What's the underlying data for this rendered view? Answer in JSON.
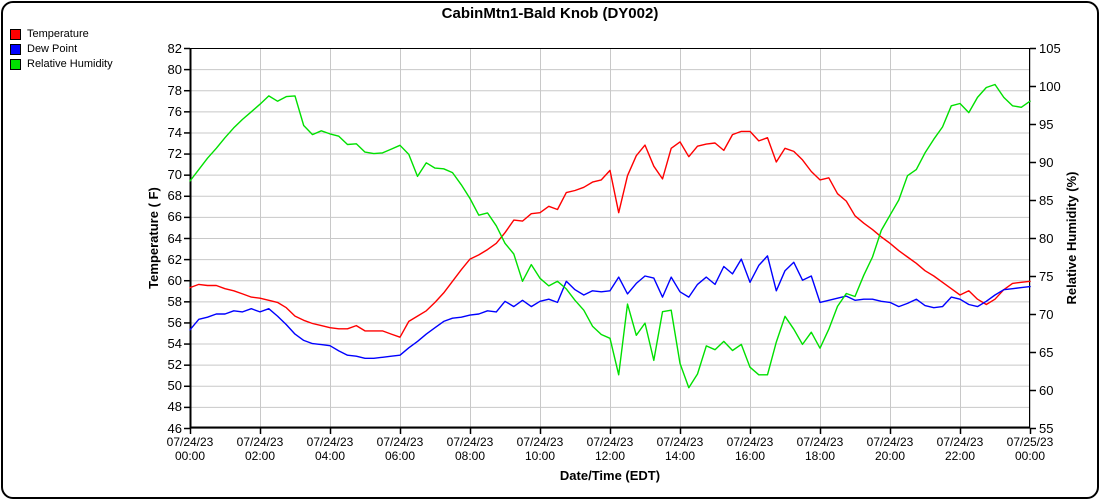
{
  "title": "CabinMtn1-Bald Knob (DY002)",
  "legend": {
    "items": [
      {
        "label": "Temperature",
        "color": "#ff0000"
      },
      {
        "label": "Dew Point",
        "color": "#0000ff"
      },
      {
        "label": "Relative Humidity",
        "color": "#00e000"
      }
    ]
  },
  "chart_data": {
    "type": "line",
    "title": "CabinMtn1-Bald Knob (DY002)",
    "xlabel": "Date/Time (EDT)",
    "ylabel_left": "Temperature ( F)",
    "ylabel_right": "Relative Humidity (%)",
    "grid": true,
    "grid_color": "#c8c8c8",
    "x_start_hours": 0,
    "x_end_hours": 24,
    "sample_interval_minutes": 15,
    "x_ticks": [
      {
        "date": "07/24/23",
        "time": "00:00"
      },
      {
        "date": "07/24/23",
        "time": "02:00"
      },
      {
        "date": "07/24/23",
        "time": "04:00"
      },
      {
        "date": "07/24/23",
        "time": "06:00"
      },
      {
        "date": "07/24/23",
        "time": "08:00"
      },
      {
        "date": "07/24/23",
        "time": "10:00"
      },
      {
        "date": "07/24/23",
        "time": "12:00"
      },
      {
        "date": "07/24/23",
        "time": "14:00"
      },
      {
        "date": "07/24/23",
        "time": "16:00"
      },
      {
        "date": "07/24/23",
        "time": "18:00"
      },
      {
        "date": "07/24/23",
        "time": "20:00"
      },
      {
        "date": "07/24/23",
        "time": "22:00"
      },
      {
        "date": "07/25/23",
        "time": "00:00"
      }
    ],
    "y_left": {
      "label": "Temperature ( F)",
      "min": 46,
      "max": 82,
      "tick_step": 2,
      "ticks": [
        82,
        80,
        78,
        76,
        74,
        72,
        70,
        68,
        66,
        64,
        62,
        60,
        58,
        56,
        54,
        52,
        50,
        48,
        46
      ]
    },
    "y_right": {
      "label": "Relative Humidity (%)",
      "min": 55,
      "max": 105,
      "tick_step": 5,
      "ticks": [
        105,
        100,
        95,
        90,
        85,
        80,
        75,
        70,
        65,
        60,
        55
      ]
    },
    "series": [
      {
        "name": "Temperature",
        "axis": "left",
        "color": "#ff0000",
        "values": [
          59.3,
          59.6,
          59.5,
          59.5,
          59.2,
          59.0,
          58.7,
          58.4,
          58.3,
          58.1,
          57.9,
          57.4,
          56.6,
          56.2,
          55.9,
          55.7,
          55.5,
          55.4,
          55.4,
          55.7,
          55.2,
          55.2,
          55.2,
          54.9,
          54.6,
          56.1,
          56.6,
          57.1,
          57.9,
          58.8,
          59.9,
          61.0,
          62.0,
          62.4,
          62.9,
          63.5,
          64.5,
          65.7,
          65.6,
          66.3,
          66.4,
          67.0,
          66.7,
          68.3,
          68.5,
          68.8,
          69.3,
          69.5,
          70.4,
          66.4,
          69.9,
          71.8,
          72.8,
          70.8,
          69.6,
          72.5,
          73.1,
          71.7,
          72.7,
          72.9,
          73.0,
          72.3,
          73.8,
          74.1,
          74.1,
          73.2,
          73.5,
          71.2,
          72.5,
          72.2,
          71.4,
          70.3,
          69.5,
          69.7,
          68.2,
          67.5,
          66.1,
          65.4,
          64.8,
          64.1,
          63.5,
          62.8,
          62.2,
          61.6,
          60.9,
          60.4,
          59.8,
          59.2,
          58.6,
          59.0,
          58.2,
          57.7,
          58.2,
          59.1,
          59.7,
          59.8,
          59.9
        ]
      },
      {
        "name": "Dew Point",
        "axis": "left",
        "color": "#0000ff",
        "values": [
          55.3,
          56.3,
          56.5,
          56.8,
          56.8,
          57.1,
          57.0,
          57.3,
          57.0,
          57.3,
          56.6,
          55.8,
          54.9,
          54.3,
          54.0,
          53.9,
          53.8,
          53.3,
          52.9,
          52.8,
          52.6,
          52.6,
          52.7,
          52.8,
          52.9,
          53.6,
          54.2,
          54.9,
          55.5,
          56.1,
          56.4,
          56.5,
          56.7,
          56.8,
          57.1,
          57.0,
          58.0,
          57.5,
          58.1,
          57.5,
          58.0,
          58.2,
          57.9,
          59.9,
          59.1,
          58.6,
          59.0,
          58.9,
          59.0,
          60.3,
          58.7,
          59.7,
          60.4,
          60.2,
          58.4,
          60.3,
          58.9,
          58.4,
          59.6,
          60.3,
          59.6,
          61.3,
          60.6,
          62.0,
          59.8,
          61.4,
          62.3,
          59.0,
          60.9,
          61.7,
          60.0,
          60.4,
          57.9,
          58.1,
          58.3,
          58.5,
          58.1,
          58.2,
          58.2,
          58.0,
          57.9,
          57.5,
          57.8,
          58.2,
          57.6,
          57.4,
          57.5,
          58.4,
          58.2,
          57.7,
          57.5,
          58.0,
          58.6,
          59.1,
          59.2,
          59.3,
          59.4
        ]
      },
      {
        "name": "Relative Humidity",
        "axis": "right",
        "color": "#00e000",
        "values": [
          87.5,
          89.0,
          90.5,
          91.8,
          93.2,
          94.5,
          95.6,
          96.6,
          97.6,
          98.7,
          98.0,
          98.6,
          98.7,
          94.8,
          93.6,
          94.1,
          93.7,
          93.4,
          92.3,
          92.4,
          91.3,
          91.1,
          91.2,
          91.7,
          92.2,
          91.0,
          88.1,
          89.9,
          89.2,
          89.1,
          88.6,
          87.0,
          85.2,
          83.0,
          83.3,
          81.6,
          79.3,
          77.9,
          74.3,
          76.5,
          74.7,
          73.7,
          74.3,
          73.3,
          71.8,
          70.5,
          68.4,
          67.3,
          66.8,
          62.0,
          71.3,
          67.2,
          68.8,
          63.9,
          70.3,
          70.5,
          63.5,
          60.3,
          62.1,
          65.8,
          65.3,
          66.4,
          65.2,
          66.0,
          63.0,
          62.0,
          62.0,
          66.3,
          69.7,
          68.0,
          66.0,
          67.6,
          65.5,
          68.0,
          71.0,
          72.7,
          72.3,
          75.1,
          77.5,
          81.0,
          83.0,
          85.0,
          88.2,
          89.0,
          91.2,
          93.0,
          94.6,
          97.4,
          97.7,
          96.5,
          98.5,
          99.8,
          100.2,
          98.5,
          97.4,
          97.2,
          98.0
        ]
      }
    ]
  }
}
